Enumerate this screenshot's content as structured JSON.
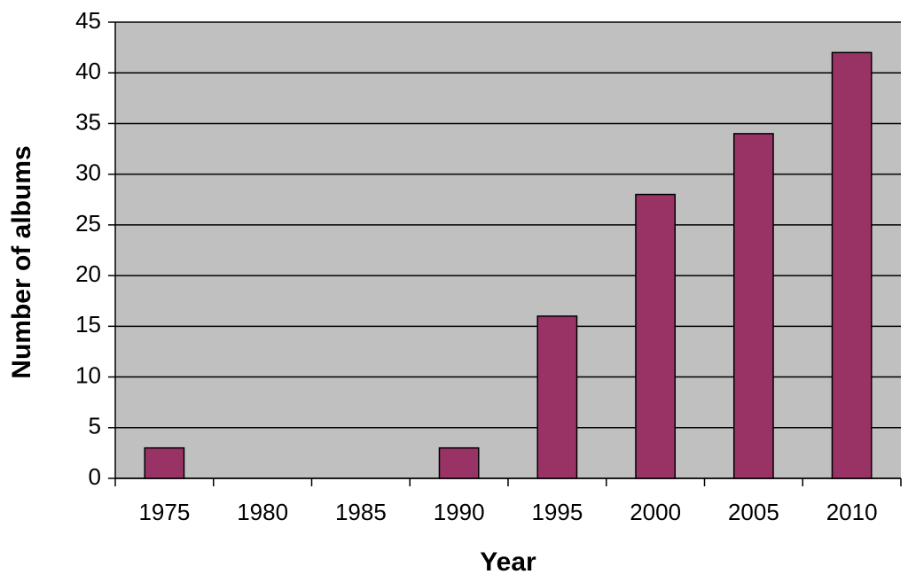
{
  "chart_data": {
    "type": "bar",
    "x_label": "Year",
    "y_label": "Number of albums",
    "categories": [
      "1975",
      "1980",
      "1985",
      "1990",
      "1995",
      "2000",
      "2005",
      "2010"
    ],
    "values": [
      3,
      0,
      0,
      3,
      16,
      28,
      34,
      42
    ],
    "color": "#993366",
    "background": "#c0c0c0",
    "ylim": [
      0,
      45
    ],
    "yticks": [
      0,
      5,
      10,
      15,
      20,
      25,
      30,
      35,
      40,
      45
    ],
    "grid": true
  }
}
